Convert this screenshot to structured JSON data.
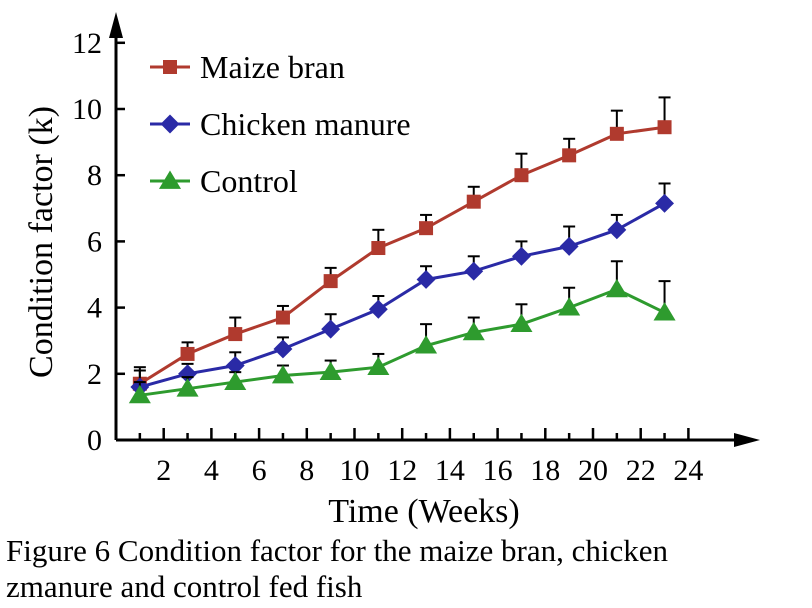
{
  "chart_data": {
    "type": "line",
    "title": "",
    "xlabel": "Time (Weeks)",
    "ylabel": "Condition factor (k)",
    "xlim": [
      0,
      25
    ],
    "ylim": [
      0,
      12
    ],
    "xticks": [
      2,
      4,
      6,
      8,
      10,
      12,
      14,
      16,
      18,
      20,
      22,
      24
    ],
    "yticks": [
      0,
      2,
      4,
      6,
      8,
      10,
      12
    ],
    "grid": false,
    "legend_position": "top-left",
    "x": [
      1,
      3,
      5,
      7,
      9,
      11,
      13,
      15,
      17,
      19,
      21,
      23
    ],
    "series": [
      {
        "name": "Maize bran",
        "color": "#b03a2e",
        "marker": "square",
        "values": [
          1.7,
          2.6,
          3.2,
          3.7,
          4.8,
          5.8,
          6.4,
          7.2,
          8.0,
          8.6,
          9.25,
          9.45
        ],
        "error": [
          0.5,
          0.35,
          0.5,
          0.35,
          0.4,
          0.55,
          0.4,
          0.45,
          0.65,
          0.5,
          0.7,
          0.9
        ]
      },
      {
        "name": "Chicken manure",
        "color": "#2a2aa6",
        "marker": "diamond",
        "values": [
          1.6,
          2.0,
          2.25,
          2.75,
          3.35,
          3.95,
          4.85,
          5.1,
          5.55,
          5.85,
          6.35,
          7.15
        ],
        "error": [
          0.5,
          0.3,
          0.4,
          0.35,
          0.45,
          0.4,
          0.4,
          0.45,
          0.45,
          0.6,
          0.45,
          0.6
        ]
      },
      {
        "name": "Control",
        "color": "#2e9b2e",
        "marker": "triangle",
        "values": [
          1.35,
          1.55,
          1.75,
          1.95,
          2.05,
          2.2,
          2.85,
          3.25,
          3.5,
          4.0,
          4.55,
          3.85
        ],
        "error": [
          0.4,
          0.35,
          0.3,
          0.3,
          0.35,
          0.4,
          0.65,
          0.45,
          0.6,
          0.6,
          0.85,
          0.95
        ]
      }
    ]
  },
  "caption": {
    "line1": "Figure 6 Condition factor for the maize bran, chicken",
    "line2": "zmanure and control fed fish"
  }
}
